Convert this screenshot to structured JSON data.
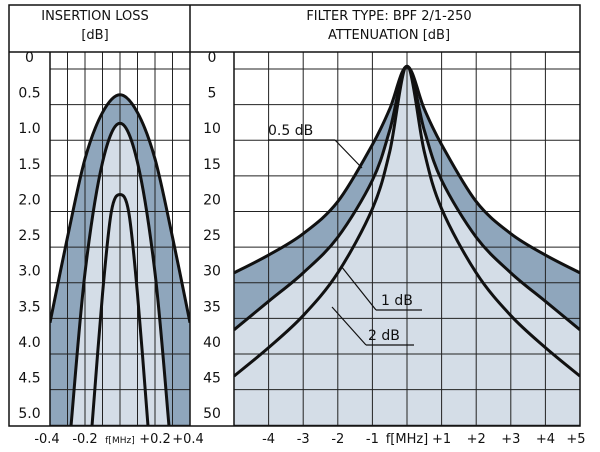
{
  "panels": {
    "insertion": {
      "title_line1": "INSERTION LOSS",
      "title_line2": "[dB]"
    },
    "attenuation": {
      "title_line1": "FILTER TYPE: BPF 2/1-250",
      "title_line2": "ATTENUATION [dB]"
    }
  },
  "chart_data": [
    {
      "type": "area",
      "title": "INSERTION LOSS [dB]",
      "xlabel": "f[MHz]",
      "x_ticks": [
        "-0.4",
        "-0.2",
        "f[MHz]",
        "+0.2",
        "+0.4"
      ],
      "y_ticks": [
        "0",
        "0.5",
        "1.0",
        "1.5",
        "2.0",
        "2.5",
        "3.0",
        "3.5",
        "4.0",
        "4.5",
        "5.0"
      ],
      "xlim": [
        -0.4,
        0.4
      ],
      "ylim": [
        0,
        5.25
      ],
      "y_inverted": true,
      "grid": true,
      "fill_colors": [
        "#8fa6bc",
        "#d4dde7"
      ],
      "series": [
        {
          "x": [
            -0.4,
            -0.3,
            -0.2,
            -0.1,
            0,
            0.1,
            0.2,
            0.3,
            0.4
          ],
          "y": [
            3.8,
            2.6,
            1.5,
            0.85,
            0.6,
            0.85,
            1.5,
            2.6,
            3.8
          ]
        },
        {
          "x": [
            -0.28,
            -0.2,
            -0.1,
            0,
            0.1,
            0.2,
            0.28
          ],
          "y": [
            5.25,
            3.1,
            1.55,
            1.0,
            1.55,
            3.1,
            5.25
          ]
        },
        {
          "x": [
            -0.16,
            -0.1,
            -0.05,
            0,
            0.05,
            0.1,
            0.16
          ],
          "y": [
            5.25,
            3.4,
            2.25,
            2.0,
            2.25,
            3.4,
            5.25
          ]
        }
      ]
    },
    {
      "type": "area",
      "title": "FILTER TYPE: BPF 2/1-250 ATTENUATION [dB]",
      "xlabel": "f[MHz]",
      "x_ticks": [
        "-4",
        "-3",
        "-2",
        "-1",
        "f[MHz]",
        "+1",
        "+2",
        "+3",
        "+4",
        "+5"
      ],
      "y_ticks": [
        "0",
        "5",
        "10",
        "15",
        "20",
        "25",
        "30",
        "35",
        "40",
        "45",
        "50"
      ],
      "xlim": [
        -5,
        5
      ],
      "ylim": [
        0,
        52.5
      ],
      "y_inverted": true,
      "grid": true,
      "fill_colors": [
        "#8fa6bc",
        "#d4dde7"
      ],
      "series": [
        {
          "name": "0.5 dB",
          "x": [
            -5,
            -4,
            -3,
            -2,
            -1,
            -0.5,
            0,
            0.5,
            1,
            2,
            3,
            4,
            5
          ],
          "y": [
            31,
            28.5,
            25.5,
            21,
            13,
            8,
            2,
            8,
            13,
            21,
            25.5,
            28.5,
            31
          ]
        },
        {
          "name": "1 dB",
          "x": [
            -5,
            -4,
            -3,
            -2,
            -1,
            -0.5,
            0,
            0.5,
            1,
            2,
            3,
            4,
            5
          ],
          "y": [
            39,
            35,
            31,
            26,
            18,
            11,
            2,
            11,
            18,
            26,
            31,
            35,
            39
          ]
        },
        {
          "name": "2 dB",
          "x": [
            -5,
            -4,
            -3,
            -2,
            -1,
            -0.5,
            0,
            0.5,
            1,
            2,
            3,
            4,
            5
          ],
          "y": [
            45.5,
            41.5,
            37,
            31,
            22,
            14,
            2,
            14,
            22,
            31,
            37,
            41.5,
            45.5
          ]
        }
      ],
      "annotations": [
        "0.5 dB",
        "1 dB",
        "2 dB"
      ]
    }
  ]
}
